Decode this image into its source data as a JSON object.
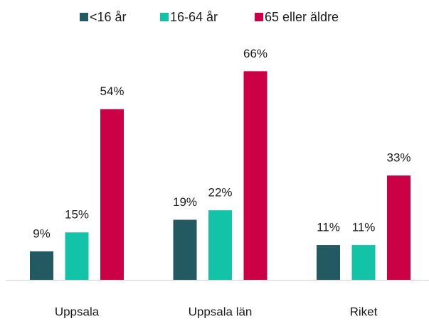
{
  "chart_data": {
    "type": "bar",
    "categories": [
      "Uppsala",
      "Uppsala län",
      "Riket"
    ],
    "series": [
      {
        "name": "<16 år",
        "color": "#235a62",
        "values": [
          9,
          19,
          11
        ],
        "value_labels": [
          "9%",
          "19%",
          "11%"
        ]
      },
      {
        "name": "16-64 år",
        "color": "#12c3a7",
        "values": [
          15,
          22,
          11
        ],
        "value_labels": [
          "15%",
          "22%",
          "11%"
        ]
      },
      {
        "name": "65 eller äldre",
        "color": "#cc0044",
        "values": [
          54,
          66,
          33
        ],
        "value_labels": [
          "54%",
          "66%",
          "33%"
        ]
      }
    ]
  }
}
